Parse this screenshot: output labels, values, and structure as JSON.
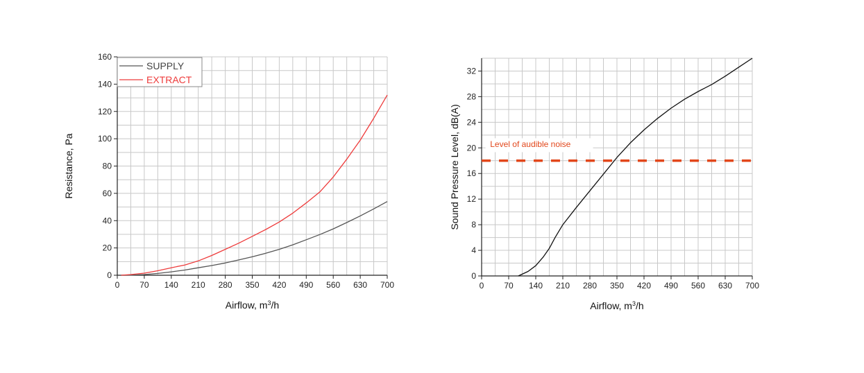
{
  "chart_data": [
    {
      "type": "line",
      "title": "",
      "xlabel": "Airflow, m³/h",
      "xlabel_main": "Airflow, m",
      "xlabel_sup": "3",
      "xlabel_tail": "/h",
      "ylabel": "Resistance, Pa",
      "xlim": [
        0,
        700
      ],
      "ylim": [
        0,
        160
      ],
      "xticks": [
        0,
        70,
        140,
        210,
        280,
        350,
        420,
        490,
        560,
        630,
        700
      ],
      "yticks": [
        0,
        20,
        40,
        60,
        80,
        100,
        120,
        140,
        160
      ],
      "grid": true,
      "legend_position": "top-left",
      "series": [
        {
          "name": "SUPPLY",
          "color": "#555555",
          "x": [
            10,
            35,
            70,
            105,
            140,
            175,
            210,
            245,
            280,
            315,
            350,
            385,
            420,
            455,
            490,
            525,
            560,
            595,
            630,
            665,
            700
          ],
          "y": [
            0,
            0.1,
            0.5,
            1.3,
            2.5,
            3.8,
            5.5,
            7.1,
            9,
            11.2,
            13.5,
            16.1,
            19,
            22.3,
            26,
            29.8,
            34,
            38.6,
            43.5,
            48.6,
            54
          ]
        },
        {
          "name": "EXTRACT",
          "color": "#ee3b3b",
          "x": [
            10,
            35,
            70,
            105,
            140,
            175,
            210,
            245,
            280,
            315,
            350,
            385,
            420,
            455,
            490,
            525,
            560,
            595,
            630,
            665,
            700
          ],
          "y": [
            0,
            0.5,
            1.5,
            3.3,
            5.5,
            7.5,
            10.5,
            14.5,
            19,
            23.5,
            28.5,
            33.5,
            39,
            45.5,
            53,
            61,
            72,
            85,
            99,
            115,
            132
          ]
        }
      ]
    },
    {
      "type": "line",
      "title": "",
      "xlabel": "Airflow, m³/h",
      "xlabel_main": "Airflow, m",
      "xlabel_sup": "3",
      "xlabel_tail": "/h",
      "ylabel": "Sound Pressure Level, dB(A)",
      "xlim": [
        0,
        700
      ],
      "ylim": [
        0,
        34
      ],
      "xticks": [
        0,
        70,
        140,
        210,
        280,
        350,
        420,
        490,
        560,
        630,
        700
      ],
      "yticks": [
        0,
        4,
        8,
        12,
        16,
        20,
        24,
        28,
        32
      ],
      "grid": true,
      "series": [
        {
          "name": "SPL",
          "color": "#111111",
          "x": [
            95,
            120,
            140,
            160,
            175,
            190,
            210,
            245,
            280,
            315,
            350,
            385,
            420,
            455,
            490,
            525,
            560,
            595,
            630,
            665,
            700
          ],
          "y": [
            0,
            0.7,
            1.6,
            3,
            4.3,
            6,
            8,
            10.7,
            13.3,
            15.9,
            18.5,
            20.8,
            22.8,
            24.6,
            26.2,
            27.6,
            28.8,
            29.9,
            31.2,
            32.6,
            34
          ]
        }
      ],
      "reference_line": {
        "label": "Level of audible noise",
        "y": 18,
        "color": "#e2471b"
      }
    }
  ]
}
